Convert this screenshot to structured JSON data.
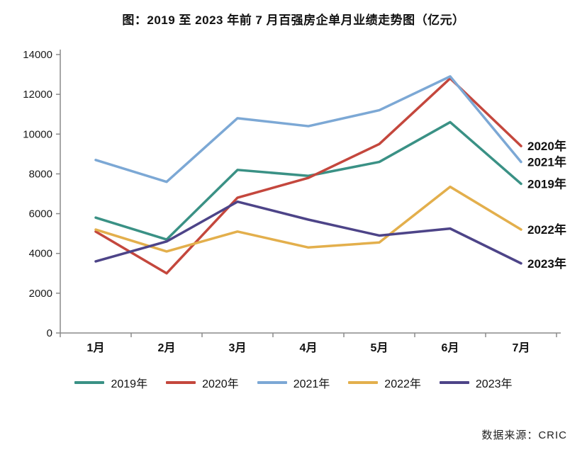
{
  "title": "图：2019 至 2023 年前 7 月百强房企单月业绩走势图（亿元）",
  "source": "数据来源：CRIC",
  "chart_data": {
    "type": "line",
    "categories": [
      "1月",
      "2月",
      "3月",
      "4月",
      "5月",
      "6月",
      "7月"
    ],
    "series": [
      {
        "name": "2019年",
        "color": "#3A9185",
        "values": [
          5800,
          4700,
          8200,
          7900,
          8600,
          10600,
          7500
        ]
      },
      {
        "name": "2020年",
        "color": "#C4473D",
        "values": [
          5100,
          3000,
          6800,
          7800,
          9500,
          12800,
          9400
        ]
      },
      {
        "name": "2021年",
        "color": "#7CA8D5",
        "values": [
          8700,
          7600,
          10800,
          10400,
          11200,
          12900,
          8600
        ]
      },
      {
        "name": "2022年",
        "color": "#E3AF4C",
        "values": [
          5200,
          4100,
          5100,
          4300,
          4550,
          7350,
          5200
        ]
      },
      {
        "name": "2023年",
        "color": "#4D4488",
        "values": [
          3600,
          4600,
          6600,
          5700,
          4900,
          5250,
          3500
        ]
      }
    ],
    "ylim": [
      0,
      14000
    ],
    "ytick_step": 2000,
    "xlabel": "",
    "ylabel": "",
    "grid": false,
    "legend_position": "bottom",
    "end_labels": true,
    "axis_color": "#8a8a8a",
    "text_color": "#1a1a1a"
  }
}
